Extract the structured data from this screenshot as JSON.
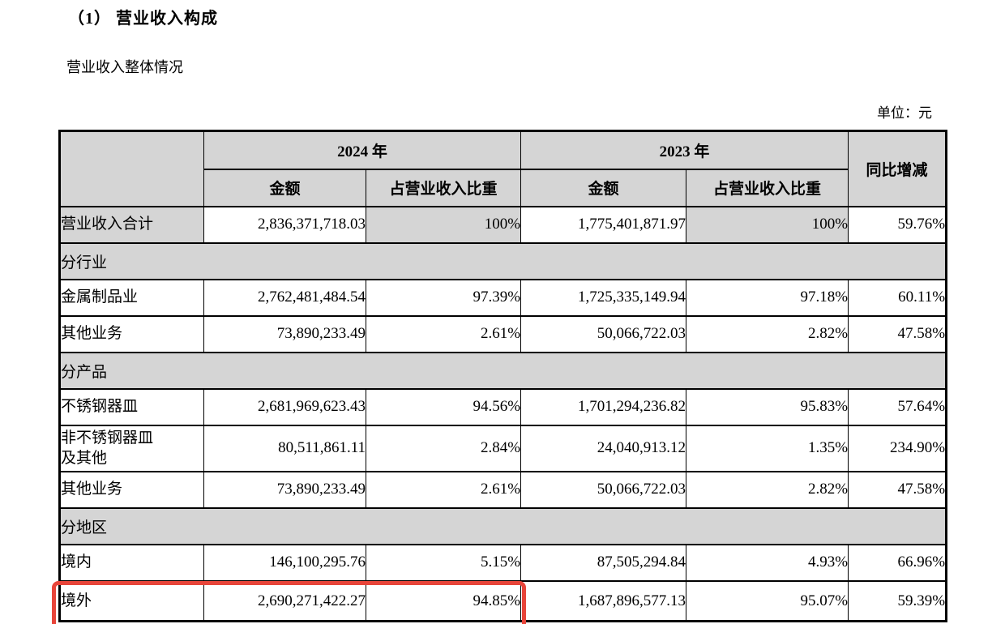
{
  "page": {
    "title": "（1） 营业收入构成",
    "subtitle": "营业收入整体情况",
    "unit_label": "单位：元"
  },
  "table": {
    "header": {
      "year_2024": "2024 年",
      "year_2023": "2023 年",
      "amount_2024": "金额",
      "share_2024": "占营业收入比重",
      "amount_2023": "金额",
      "share_2023": "占营业收入比重",
      "yoy": "同比增减"
    },
    "rows": [
      {
        "type": "total",
        "label": "营业收入合计",
        "amount_2024": "2,836,371,718.03",
        "share_2024": "100%",
        "amount_2023": "1,775,401,871.97",
        "share_2023": "100%",
        "yoy": "59.76%"
      },
      {
        "type": "section",
        "label": "分行业"
      },
      {
        "type": "data",
        "label": "金属制品业",
        "amount_2024": "2,762,481,484.54",
        "share_2024": "97.39%",
        "amount_2023": "1,725,335,149.94",
        "share_2023": "97.18%",
        "yoy": "60.11%"
      },
      {
        "type": "data",
        "label": "其他业务",
        "amount_2024": "73,890,233.49",
        "share_2024": "2.61%",
        "amount_2023": "50,066,722.03",
        "share_2023": "2.82%",
        "yoy": "47.58%"
      },
      {
        "type": "section",
        "label": "分产品"
      },
      {
        "type": "data",
        "label": "不锈钢器皿",
        "amount_2024": "2,681,969,623.43",
        "share_2024": "94.56%",
        "amount_2023": "1,701,294,236.82",
        "share_2023": "95.83%",
        "yoy": "57.64%"
      },
      {
        "type": "data",
        "label": "非不锈钢器皿\n及其他",
        "amount_2024": "80,511,861.11",
        "share_2024": "2.84%",
        "amount_2023": "24,040,913.12",
        "share_2023": "1.35%",
        "yoy": "234.90%"
      },
      {
        "type": "data",
        "label": "其他业务",
        "amount_2024": "73,890,233.49",
        "share_2024": "2.61%",
        "amount_2023": "50,066,722.03",
        "share_2023": "2.82%",
        "yoy": "47.58%"
      },
      {
        "type": "section",
        "label": "分地区"
      },
      {
        "type": "data",
        "label": "境内",
        "amount_2024": "146,100,295.76",
        "share_2024": "5.15%",
        "amount_2023": "87,505,294.84",
        "share_2023": "4.93%",
        "yoy": "66.96%"
      },
      {
        "type": "data",
        "label": "境外",
        "amount_2024": "2,690,271,422.27",
        "share_2024": "94.85%",
        "amount_2023": "1,687,896,577.13",
        "share_2023": "95.07%",
        "yoy": "59.39%",
        "highlighted": true
      }
    ]
  },
  "highlight": {
    "color": "#e8453a"
  },
  "colors": {
    "header_shade": "#d5d5d5",
    "border": "#000000"
  }
}
